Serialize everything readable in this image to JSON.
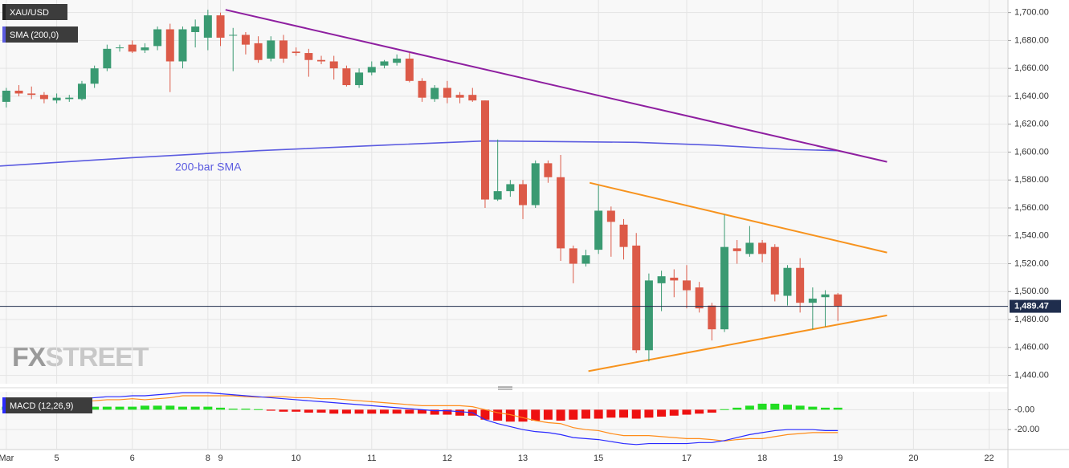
{
  "chart_data": [
    {
      "type": "candlestick",
      "title": "XAU/USD",
      "indicator_label": "SMA (200,0)",
      "sma_label": "200-bar SMA",
      "watermark_fx": "FX",
      "watermark_street": "STREET",
      "categories": [
        "Mar",
        null,
        null,
        null,
        "5",
        null,
        null,
        null,
        null,
        null,
        "6",
        null,
        null,
        null,
        null,
        null,
        "8",
        "9",
        null,
        null,
        null,
        null,
        null,
        "10",
        null,
        null,
        null,
        null,
        null,
        "11",
        null,
        null,
        null,
        null,
        null,
        "12",
        null,
        null,
        null,
        null,
        null,
        "13",
        null,
        null,
        null,
        null,
        null,
        "15",
        null,
        null,
        null,
        null,
        null,
        null,
        "17",
        null,
        null,
        null,
        null,
        null,
        "18",
        null,
        null,
        null,
        null,
        null,
        "19",
        null,
        null,
        null,
        null,
        null,
        "20",
        null,
        null,
        null,
        null,
        null,
        "22",
        null
      ],
      "open": [
        1636,
        1644,
        1642,
        1641,
        1637,
        1638,
        1638,
        1649,
        1660,
        1675,
        1677,
        1673,
        1676,
        1688,
        1665,
        1686,
        1682,
        1698,
        1684,
        1684,
        1678,
        1667,
        1680,
        1672,
        1671,
        1666,
        1665,
        1660,
        1648,
        1657,
        1662,
        1664,
        1667,
        1651,
        1638,
        1646,
        1641,
        1641,
        1637,
        1566,
        1572,
        1577,
        1562,
        1592,
        1582,
        1531,
        1520,
        1530,
        1558,
        1548,
        1533,
        1458,
        1506,
        1510,
        1508,
        1503,
        1490,
        1473,
        1531,
        1527,
        1535,
        1532,
        1497,
        1517,
        1492,
        1496,
        1498,
        null,
        null,
        null,
        null,
        null,
        null,
        null,
        null,
        null,
        null,
        null,
        null,
        null
      ],
      "high": [
        1646,
        1648,
        1647,
        1643,
        1642,
        1641,
        1651,
        1662,
        1677,
        1677,
        1680,
        1678,
        1690,
        1692,
        1690,
        1695,
        1702,
        1700,
        1689,
        1686,
        1683,
        1683,
        1684,
        1675,
        1674,
        1669,
        1669,
        1662,
        1660,
        1665,
        1666,
        1670,
        1671,
        1653,
        1648,
        1651,
        1643,
        1646,
        1637,
        1609,
        1580,
        1580,
        1594,
        1594,
        1598,
        1533,
        1530,
        1576,
        1561,
        1552,
        1542,
        1513,
        1515,
        1516,
        1519,
        1507,
        1492,
        1555,
        1537,
        1547,
        1537,
        1534,
        1519,
        1524,
        1503,
        1501,
        1499,
        null,
        null,
        null,
        null,
        null,
        null,
        null,
        null,
        null,
        null,
        null,
        null,
        null
      ],
      "low": [
        1632,
        1640,
        1638,
        1635,
        1635,
        1636,
        1637,
        1646,
        1658,
        1672,
        1671,
        1671,
        1673,
        1643,
        1660,
        1675,
        1673,
        1676,
        1658,
        1670,
        1664,
        1665,
        1664,
        1669,
        1654,
        1663,
        1652,
        1647,
        1646,
        1655,
        1660,
        1662,
        1650,
        1636,
        1636,
        1635,
        1635,
        1636,
        1560,
        1565,
        1568,
        1552,
        1560,
        1578,
        1522,
        1506,
        1518,
        1527,
        1525,
        1523,
        1456,
        1450,
        1486,
        1496,
        1488,
        1485,
        1465,
        1471,
        1520,
        1525,
        1521,
        1493,
        1490,
        1485,
        1473,
        1475,
        1479,
        null,
        null,
        null,
        null,
        null,
        null,
        null,
        null,
        null,
        null,
        null,
        null,
        null
      ],
      "close": [
        1644,
        1642,
        1641,
        1638,
        1639,
        1639,
        1649,
        1660,
        1674,
        1675,
        1672,
        1675,
        1688,
        1665,
        1688,
        1690,
        1698,
        1682,
        1684,
        1677,
        1666,
        1680,
        1667,
        1671,
        1666,
        1665,
        1660,
        1648,
        1657,
        1661,
        1665,
        1667,
        1651,
        1639,
        1646,
        1639,
        1639,
        1637,
        1566,
        1572,
        1577,
        1562,
        1592,
        1582,
        1531,
        1520,
        1526,
        1558,
        1550,
        1532,
        1458,
        1508,
        1511,
        1508,
        1501,
        1488,
        1473,
        1532,
        1529,
        1535,
        1527,
        1498,
        1517,
        1492,
        1495,
        1498,
        1489.47,
        null,
        null,
        null,
        null,
        null,
        null,
        null,
        null,
        null,
        null,
        null,
        null,
        null
      ],
      "up_color": "#3a9a72",
      "down_color": "#dc5a48",
      "ylim": [
        1434,
        1709
      ],
      "yticks": [
        {
          "value": 1440,
          "label": "1,440.00"
        },
        {
          "value": 1460,
          "label": "1,460.00"
        },
        {
          "value": 1480,
          "label": "1,480.00"
        },
        {
          "value": 1500,
          "label": "1,500.00"
        },
        {
          "value": 1520,
          "label": "1,520.00"
        },
        {
          "value": 1540,
          "label": "1,540.00"
        },
        {
          "value": 1560,
          "label": "1,560.00"
        },
        {
          "value": 1580,
          "label": "1,580.00"
        },
        {
          "value": 1600,
          "label": "1,600.00"
        },
        {
          "value": 1620,
          "label": "1,620.00"
        },
        {
          "value": 1640,
          "label": "1,640.00"
        },
        {
          "value": 1660,
          "label": "1,660.00"
        },
        {
          "value": 1680,
          "label": "1,680.00"
        },
        {
          "value": 1700,
          "label": "1,700.00"
        }
      ],
      "grid": true,
      "last_price": {
        "value": 1489.47,
        "label": "1,489.47",
        "color": "#1f2d4d"
      },
      "sma": {
        "color": "#5b5be0",
        "x": [
          -0.5,
          10,
          20,
          30,
          38,
          50,
          56,
          62,
          66
        ],
        "values": [
          1590,
          1596,
          1601,
          1605,
          1608,
          1607,
          1605,
          1602,
          1601
        ]
      },
      "trendlines": [
        {
          "color": "#8e1fa0",
          "x": [
            17.4,
            69.9
          ],
          "values": [
            1702,
            1593
          ]
        },
        {
          "color": "#f7931e",
          "x": [
            46.3,
            69.9
          ],
          "values": [
            1578,
            1528
          ]
        },
        {
          "color": "#f7931e",
          "x": [
            46.2,
            69.9
          ],
          "values": [
            1443,
            1483
          ]
        }
      ]
    },
    {
      "type": "macd",
      "title": "MACD (12,26,9)",
      "ylim": [
        -40,
        18
      ],
      "yticks": [
        {
          "value": 0,
          "label": "-0.00"
        },
        {
          "value": -20,
          "label": "-20.00"
        }
      ],
      "histogram": {
        "up_color": "#22dd22",
        "down_color": "#ee1111",
        "values": [
          3,
          3,
          3,
          3,
          3,
          3,
          3,
          3,
          3,
          3,
          3,
          4,
          4,
          4,
          3,
          3,
          3,
          2,
          1,
          1,
          0.5,
          -1,
          -2,
          -2,
          -3,
          -3,
          -4,
          -4,
          -4,
          -4,
          -4,
          -4,
          -4,
          -4,
          -5,
          -5,
          -6,
          -6,
          -10,
          -11,
          -12,
          -12,
          -11,
          -10,
          -11,
          -10,
          -9,
          -9,
          -8,
          -8,
          -9,
          -8,
          -7,
          -6,
          -5,
          -4,
          -3,
          0.5,
          2,
          4,
          6,
          6,
          5,
          4,
          3,
          2,
          2,
          null,
          null,
          null,
          null,
          null,
          null,
          null,
          null,
          null,
          null,
          null,
          null,
          null
        ]
      },
      "macd_line": {
        "color": "#2a2aff",
        "values": [
          6,
          7,
          8,
          9,
          9,
          10,
          11,
          12,
          13,
          13,
          14,
          14,
          15,
          16,
          17,
          17,
          17,
          16,
          15,
          14,
          13,
          12,
          11,
          10,
          9,
          8,
          7,
          6,
          5,
          4,
          3,
          2,
          1,
          0,
          -1,
          -1,
          -2,
          -3,
          -10,
          -14,
          -17,
          -20,
          -22,
          -23,
          -25,
          -28,
          -29,
          -30,
          -32,
          -34,
          -35,
          -34,
          -34,
          -34,
          -34,
          -33,
          -33,
          -31,
          -28,
          -25,
          -23,
          -21,
          -20,
          -20,
          -20,
          -21,
          -21,
          null,
          null,
          null,
          null,
          null,
          null,
          null,
          null,
          null,
          null,
          null,
          null,
          null
        ]
      },
      "signal_line": {
        "color": "#ff8c1a",
        "values": [
          3,
          4,
          5,
          6,
          6,
          7,
          8,
          9,
          10,
          10,
          11,
          10,
          11,
          12,
          14,
          14,
          14,
          14,
          14,
          13,
          12.5,
          13,
          13,
          12,
          12,
          11,
          11,
          10,
          9,
          8,
          7,
          6,
          5,
          4,
          4,
          4,
          4,
          3,
          0,
          -3,
          -5,
          -8,
          -11,
          -13,
          -14,
          -18,
          -20,
          -21,
          -24,
          -26,
          -26,
          -26,
          -27,
          -28,
          -29,
          -29,
          -30,
          -31.5,
          -30,
          -29,
          -29,
          -27,
          -25,
          -24,
          -23,
          -23,
          -23,
          null,
          null,
          null,
          null,
          null,
          null,
          null,
          null,
          null,
          null,
          null,
          null,
          null
        ]
      }
    }
  ]
}
